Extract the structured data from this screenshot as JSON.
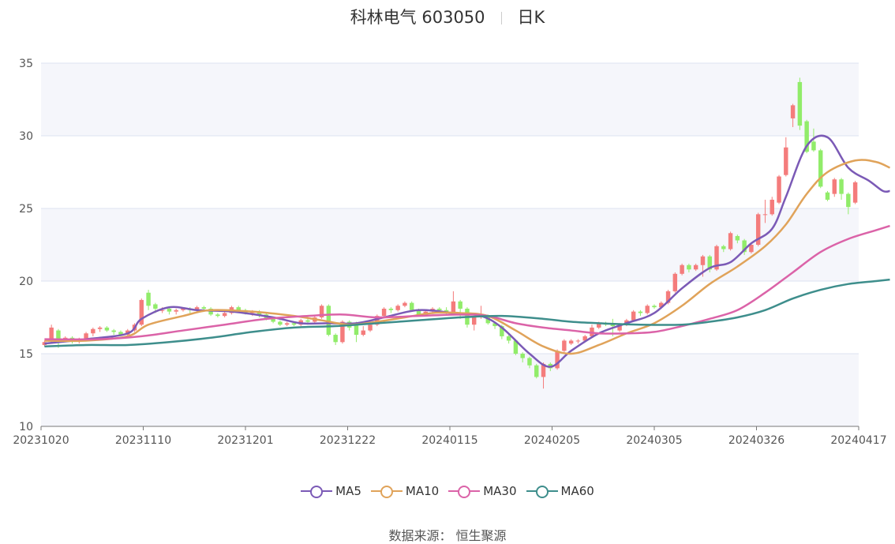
{
  "title": {
    "name": "科林电气 603050",
    "period": "日K"
  },
  "source": "数据来源：  恒生聚源",
  "chart_data": {
    "type": "candlestick",
    "ylim": [
      10,
      35
    ],
    "yticks": [
      10,
      15,
      20,
      25,
      30,
      35
    ],
    "xticks": [
      "20231020",
      "20231110",
      "20231201",
      "20231222",
      "20240115",
      "20240205",
      "20240305",
      "20240326",
      "20240417"
    ],
    "colors": {
      "up": "#f47c7c",
      "down": "#91ec6a",
      "MA5": "#7b5ab6",
      "MA10": "#e0a35a",
      "MA30": "#db63a8",
      "MA60": "#3e8e8c"
    },
    "candles": [
      [
        15.6,
        15.8,
        15.9,
        15.5
      ],
      [
        15.9,
        16.8,
        17.0,
        15.8
      ],
      [
        16.6,
        16.0,
        16.7,
        15.4
      ],
      [
        16.0,
        16.1,
        16.2,
        15.8
      ],
      [
        16.1,
        15.9,
        16.2,
        15.7
      ],
      [
        15.9,
        16.0,
        16.1,
        15.7
      ],
      [
        16.0,
        16.4,
        16.5,
        15.9
      ],
      [
        16.4,
        16.7,
        16.8,
        16.2
      ],
      [
        16.7,
        16.8,
        16.9,
        16.5
      ],
      [
        16.8,
        16.6,
        16.9,
        16.5
      ],
      [
        16.6,
        16.5,
        16.7,
        16.3
      ],
      [
        16.5,
        16.3,
        16.6,
        16.2
      ],
      [
        16.3,
        16.6,
        16.7,
        16.2
      ],
      [
        16.6,
        17.0,
        17.1,
        16.5
      ],
      [
        17.0,
        18.7,
        18.8,
        16.9
      ],
      [
        19.2,
        18.3,
        19.4,
        18.0
      ],
      [
        18.4,
        18.1,
        18.5,
        17.8
      ],
      [
        18.0,
        18.0,
        18.2,
        17.8
      ],
      [
        18.1,
        17.9,
        18.2,
        17.7
      ],
      [
        17.9,
        18.0,
        18.1,
        17.7
      ],
      [
        18.0,
        18.1,
        18.2,
        17.9
      ],
      [
        18.1,
        18.0,
        18.2,
        17.8
      ],
      [
        18.0,
        18.2,
        18.3,
        17.9
      ],
      [
        18.2,
        18.1,
        18.3,
        17.9
      ],
      [
        18.1,
        17.7,
        18.2,
        17.6
      ],
      [
        17.7,
        17.6,
        17.8,
        17.5
      ],
      [
        17.6,
        17.8,
        17.9,
        17.5
      ],
      [
        17.8,
        18.2,
        18.3,
        17.7
      ],
      [
        18.2,
        18.0,
        18.3,
        17.8
      ],
      [
        18.0,
        17.8,
        18.1,
        17.7
      ],
      [
        17.8,
        17.9,
        18.0,
        17.6
      ],
      [
        17.9,
        17.7,
        18.0,
        17.5
      ],
      [
        17.7,
        17.4,
        17.8,
        17.3
      ],
      [
        17.4,
        17.2,
        17.5,
        17.1
      ],
      [
        17.2,
        17.0,
        17.3,
        16.9
      ],
      [
        17.0,
        17.1,
        17.2,
        16.9
      ],
      [
        17.1,
        17.0,
        17.2,
        16.9
      ],
      [
        17.0,
        17.3,
        17.4,
        16.9
      ],
      [
        17.3,
        17.2,
        17.4,
        17.0
      ],
      [
        17.2,
        17.5,
        17.6,
        17.1
      ],
      [
        17.5,
        18.3,
        18.4,
        17.4
      ],
      [
        18.3,
        16.3,
        18.4,
        16.2
      ],
      [
        16.3,
        15.8,
        16.4,
        15.6
      ],
      [
        15.8,
        17.2,
        17.3,
        15.7
      ],
      [
        17.2,
        16.8,
        17.3,
        16.6
      ],
      [
        17.1,
        16.3,
        17.2,
        15.8
      ],
      [
        16.3,
        16.6,
        16.9,
        16.2
      ],
      [
        16.6,
        17.0,
        17.1,
        16.5
      ],
      [
        17.0,
        17.6,
        17.7,
        16.9
      ],
      [
        17.6,
        18.1,
        18.2,
        17.5
      ],
      [
        18.1,
        18.0,
        18.2,
        17.8
      ],
      [
        18.0,
        18.3,
        18.4,
        17.9
      ],
      [
        18.3,
        18.5,
        18.6,
        18.2
      ],
      [
        18.5,
        18.0,
        18.6,
        17.9
      ],
      [
        18.0,
        17.7,
        18.1,
        17.6
      ],
      [
        17.7,
        17.9,
        18.0,
        17.6
      ],
      [
        17.9,
        18.1,
        18.2,
        17.8
      ],
      [
        18.1,
        18.0,
        18.2,
        17.9
      ],
      [
        18.0,
        17.8,
        18.2,
        17.7
      ],
      [
        17.8,
        18.6,
        19.3,
        17.7
      ],
      [
        18.6,
        18.1,
        18.7,
        17.4
      ],
      [
        18.1,
        17.0,
        18.2,
        16.8
      ],
      [
        17.0,
        17.5,
        17.6,
        16.6
      ],
      [
        17.5,
        17.6,
        18.3,
        17.4
      ],
      [
        17.6,
        17.1,
        17.7,
        17.0
      ],
      [
        17.1,
        16.9,
        17.2,
        16.7
      ],
      [
        16.9,
        16.2,
        17.0,
        16.0
      ],
      [
        16.2,
        15.9,
        16.3,
        15.7
      ],
      [
        15.9,
        15.0,
        16.0,
        14.9
      ],
      [
        15.0,
        14.7,
        15.1,
        14.4
      ],
      [
        14.7,
        14.2,
        14.8,
        14.0
      ],
      [
        14.2,
        13.4,
        14.3,
        13.3
      ],
      [
        13.4,
        14.3,
        14.4,
        12.6
      ],
      [
        14.3,
        14.0,
        14.4,
        13.8
      ],
      [
        14.0,
        15.2,
        15.3,
        13.9
      ],
      [
        15.2,
        15.9,
        16.0,
        15.1
      ],
      [
        15.7,
        15.9,
        16.0,
        15.6
      ],
      [
        15.9,
        15.9,
        16.0,
        15.7
      ],
      [
        15.9,
        16.2,
        16.3,
        15.8
      ],
      [
        16.2,
        16.8,
        17.0,
        16.1
      ],
      [
        16.8,
        17.1,
        17.2,
        16.7
      ],
      [
        17.1,
        17.0,
        17.2,
        16.9
      ],
      [
        17.0,
        16.9,
        17.4,
        16.2
      ],
      [
        16.6,
        17.0,
        17.1,
        16.5
      ],
      [
        17.0,
        17.3,
        17.4,
        16.9
      ],
      [
        17.3,
        17.9,
        18.0,
        17.2
      ],
      [
        17.9,
        17.8,
        18.0,
        17.6
      ],
      [
        17.8,
        18.3,
        18.4,
        17.7
      ],
      [
        18.3,
        18.2,
        18.4,
        18.1
      ],
      [
        18.2,
        18.5,
        18.6,
        18.1
      ],
      [
        18.5,
        19.3,
        19.4,
        18.4
      ],
      [
        19.3,
        20.5,
        20.6,
        19.2
      ],
      [
        20.5,
        21.1,
        21.2,
        20.4
      ],
      [
        21.1,
        20.8,
        21.2,
        20.6
      ],
      [
        20.8,
        21.1,
        21.2,
        20.7
      ],
      [
        21.1,
        21.7,
        21.8,
        20.3
      ],
      [
        21.7,
        20.8,
        21.8,
        20.6
      ],
      [
        20.8,
        22.4,
        22.5,
        20.7
      ],
      [
        22.4,
        22.2,
        22.5,
        22.0
      ],
      [
        22.2,
        23.3,
        23.4,
        22.1
      ],
      [
        23.1,
        22.8,
        23.2,
        22.6
      ],
      [
        22.8,
        22.0,
        22.9,
        21.8
      ],
      [
        22.0,
        22.5,
        22.6,
        21.9
      ],
      [
        22.5,
        24.6,
        24.7,
        22.4
      ],
      [
        24.6,
        24.6,
        25.6,
        24.0
      ],
      [
        24.6,
        25.6,
        25.8,
        24.5
      ],
      [
        25.4,
        27.2,
        27.3,
        25.3
      ],
      [
        27.3,
        29.2,
        29.9,
        27.2
      ],
      [
        31.2,
        32.1,
        32.2,
        30.6
      ],
      [
        33.7,
        30.7,
        34.0,
        30.4
      ],
      [
        31.0,
        28.9,
        31.1,
        28.8
      ],
      [
        29.6,
        29.0,
        30.5,
        28.9
      ],
      [
        29.0,
        26.5,
        29.1,
        26.4
      ],
      [
        26.1,
        25.6,
        26.2,
        25.5
      ],
      [
        26.0,
        27.0,
        27.1,
        25.8
      ],
      [
        27.0,
        26.0,
        27.1,
        25.6
      ],
      [
        26.0,
        25.1,
        26.1,
        24.6
      ],
      [
        25.4,
        26.8,
        26.9,
        25.3
      ]
    ],
    "series": [
      {
        "name": "MA5",
        "points": [
          [
            0,
            15.7
          ],
          [
            6,
            16.0
          ],
          [
            12,
            16.4
          ],
          [
            14,
            17.4
          ],
          [
            18,
            18.2
          ],
          [
            22,
            18.0
          ],
          [
            27,
            17.9
          ],
          [
            33,
            17.5
          ],
          [
            37,
            17.1
          ],
          [
            41,
            17.1
          ],
          [
            45,
            17.1
          ],
          [
            49,
            17.5
          ],
          [
            54,
            18.0
          ],
          [
            59,
            17.8
          ],
          [
            63,
            17.6
          ],
          [
            66,
            16.8
          ],
          [
            70,
            15.0
          ],
          [
            73,
            14.1
          ],
          [
            76,
            15.2
          ],
          [
            80,
            16.4
          ],
          [
            84,
            17.1
          ],
          [
            88,
            17.8
          ],
          [
            92,
            19.5
          ],
          [
            96,
            20.9
          ],
          [
            99,
            21.3
          ],
          [
            102,
            22.6
          ],
          [
            105,
            23.6
          ],
          [
            107,
            25.8
          ],
          [
            110,
            29.3
          ],
          [
            113,
            29.9
          ],
          [
            116,
            27.8
          ],
          [
            119,
            26.9
          ],
          [
            121,
            26.2
          ],
          [
            122,
            26.2
          ]
        ]
      },
      {
        "name": "MA10",
        "points": [
          [
            0,
            15.9
          ],
          [
            6,
            15.9
          ],
          [
            12,
            16.2
          ],
          [
            15,
            17.0
          ],
          [
            20,
            17.6
          ],
          [
            24,
            18.0
          ],
          [
            30,
            17.9
          ],
          [
            36,
            17.6
          ],
          [
            40,
            17.3
          ],
          [
            44,
            17.0
          ],
          [
            48,
            17.2
          ],
          [
            52,
            17.5
          ],
          [
            56,
            17.8
          ],
          [
            60,
            17.8
          ],
          [
            64,
            17.6
          ],
          [
            68,
            16.6
          ],
          [
            72,
            15.5
          ],
          [
            76,
            15.0
          ],
          [
            80,
            15.6
          ],
          [
            84,
            16.4
          ],
          [
            88,
            17.1
          ],
          [
            92,
            18.3
          ],
          [
            96,
            19.8
          ],
          [
            100,
            21.0
          ],
          [
            104,
            22.4
          ],
          [
            107,
            23.9
          ],
          [
            110,
            26.0
          ],
          [
            113,
            27.5
          ],
          [
            117,
            28.3
          ],
          [
            120,
            28.2
          ],
          [
            122,
            27.8
          ]
        ]
      },
      {
        "name": "MA30",
        "points": [
          [
            0,
            16.0
          ],
          [
            8,
            16.0
          ],
          [
            14,
            16.2
          ],
          [
            20,
            16.6
          ],
          [
            26,
            17.0
          ],
          [
            32,
            17.4
          ],
          [
            38,
            17.6
          ],
          [
            43,
            17.7
          ],
          [
            48,
            17.5
          ],
          [
            54,
            17.6
          ],
          [
            60,
            17.7
          ],
          [
            64,
            17.6
          ],
          [
            68,
            17.1
          ],
          [
            72,
            16.8
          ],
          [
            76,
            16.6
          ],
          [
            80,
            16.4
          ],
          [
            84,
            16.4
          ],
          [
            88,
            16.5
          ],
          [
            92,
            16.9
          ],
          [
            96,
            17.4
          ],
          [
            100,
            18.0
          ],
          [
            104,
            19.2
          ],
          [
            108,
            20.6
          ],
          [
            112,
            22.0
          ],
          [
            116,
            22.9
          ],
          [
            120,
            23.5
          ],
          [
            122,
            23.8
          ]
        ]
      },
      {
        "name": "MA60",
        "points": [
          [
            0,
            15.5
          ],
          [
            6,
            15.6
          ],
          [
            12,
            15.6
          ],
          [
            18,
            15.8
          ],
          [
            24,
            16.1
          ],
          [
            30,
            16.5
          ],
          [
            36,
            16.8
          ],
          [
            42,
            16.9
          ],
          [
            48,
            17.1
          ],
          [
            54,
            17.3
          ],
          [
            60,
            17.5
          ],
          [
            66,
            17.6
          ],
          [
            72,
            17.4
          ],
          [
            76,
            17.2
          ],
          [
            80,
            17.1
          ],
          [
            86,
            17.0
          ],
          [
            92,
            17.0
          ],
          [
            96,
            17.2
          ],
          [
            100,
            17.5
          ],
          [
            104,
            18.0
          ],
          [
            108,
            18.8
          ],
          [
            112,
            19.4
          ],
          [
            116,
            19.8
          ],
          [
            120,
            20.0
          ],
          [
            122,
            20.1
          ]
        ]
      }
    ]
  }
}
